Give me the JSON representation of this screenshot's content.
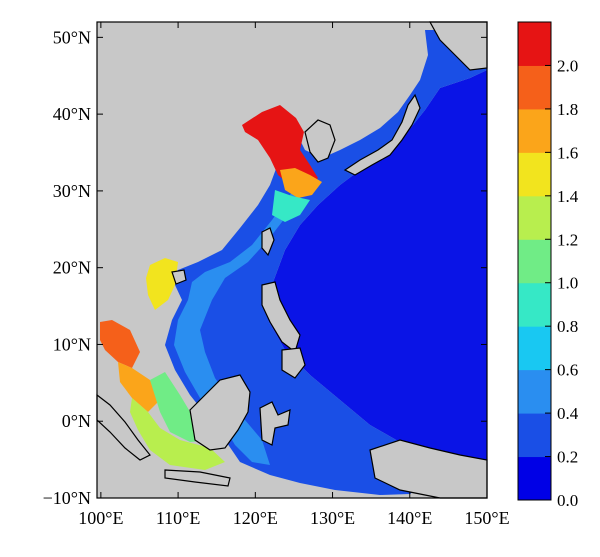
{
  "map": {
    "lat_ticks": [
      "50°N",
      "40°N",
      "30°N",
      "20°N",
      "10°N",
      "0°N",
      "−10°N"
    ],
    "lon_ticks": [
      "100°E",
      "110°E",
      "120°E",
      "130°E",
      "140°E",
      "150°E"
    ],
    "lat_range": [
      -10,
      52
    ],
    "lon_range": [
      99.5,
      150
    ]
  },
  "colorbar": {
    "labels": [
      "2.0",
      "1.8",
      "1.6",
      "1.4",
      "1.2",
      "1.0",
      "0.8",
      "0.6",
      "0.4",
      "0.2",
      "0.0"
    ],
    "range": [
      0.0,
      2.2
    ],
    "colors": [
      "#0000e6",
      "#1a4fe6",
      "#2a8ef0",
      "#19c8f2",
      "#36e8c6",
      "#70ec86",
      "#b8ee4e",
      "#f2e41e",
      "#fba51a",
      "#f5601a",
      "#e61414"
    ]
  },
  "colors": {
    "land": "#c8c8c8",
    "ocean_low": "#0a14e6",
    "coast": "#000000"
  }
}
